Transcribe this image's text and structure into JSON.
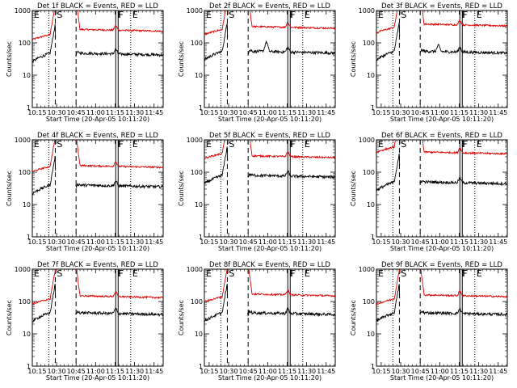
{
  "chart_data": {
    "type": "line",
    "common": {
      "xlabel": "Start Time (20-Apr-05 10:11:20)",
      "ylabel": "Counts/sec",
      "x_tick_labels": [
        "10:15",
        "10:30",
        "10:45",
        "11:00",
        "11:15",
        "11:30",
        "11:45"
      ],
      "x_tick_values_min": [
        15,
        30,
        45,
        60,
        75,
        90,
        105
      ],
      "xlim_min": [
        11.333,
        112
      ],
      "y_scale": "log",
      "ylim": [
        1,
        1000
      ],
      "y_tick_labels": [
        "1",
        "10",
        "100",
        "1000"
      ],
      "series_colors": {
        "events": "#000000",
        "lld": "#dd0000"
      },
      "markers": [
        {
          "label": "",
          "x_min": 24,
          "style": "dotted"
        },
        {
          "label": "S",
          "x_min": 29,
          "style": "dashed"
        },
        {
          "label": "",
          "x_min": 45,
          "style": "dashed"
        },
        {
          "label": "F",
          "x_min": 75.5,
          "style": "solid"
        },
        {
          "label": "E",
          "x_min": 87,
          "style": "dotted"
        }
      ],
      "marker_edge_labels": {
        "left": "E",
        "right": "F"
      }
    },
    "panels": [
      {
        "title": "Det 1f BLACK = Events, RED = LLD",
        "events_base": 48,
        "lld_base": 260,
        "events_bump": 0,
        "lld_bump": 0,
        "lld_ramp_start": 180
      },
      {
        "title": "Det 2f BLACK = Events, RED = LLD",
        "events_base": 55,
        "lld_base": 320,
        "events_bump": 130,
        "lld_bump": 0,
        "lld_ramp_start": 260
      },
      {
        "title": "Det 3f BLACK = Events, RED = LLD",
        "events_base": 55,
        "lld_base": 380,
        "events_bump": 70,
        "lld_bump": 0,
        "lld_ramp_start": 300
      },
      {
        "title": "Det 4f BLACK = Events, RED = LLD",
        "events_base": 40,
        "lld_base": 160,
        "events_bump": 0,
        "lld_bump": 0,
        "lld_ramp_start": 150
      },
      {
        "title": "Det 5f BLACK = Events, RED = LLD",
        "events_base": 80,
        "lld_base": 320,
        "events_bump": 0,
        "lld_bump": 0,
        "lld_ramp_start": 380
      },
      {
        "title": "Det 6f BLACK = Events, RED = LLD",
        "events_base": 50,
        "lld_base": 420,
        "events_bump": 0,
        "lld_bump": 0,
        "lld_ramp_start": 600
      },
      {
        "title": "Det 7f BLACK = Events, RED = LLD",
        "events_base": 45,
        "lld_base": 150,
        "events_bump": 0,
        "lld_bump": 0,
        "lld_ramp_start": 120
      },
      {
        "title": "Det 8f BLACK = Events, RED = LLD",
        "events_base": 45,
        "lld_base": 170,
        "events_bump": 0,
        "lld_bump": 0,
        "lld_ramp_start": 140
      },
      {
        "title": "Det 9f BLACK = Events, RED = LLD",
        "events_base": 45,
        "lld_base": 160,
        "events_bump": 0,
        "lld_bump": 0,
        "lld_ramp_start": 120
      }
    ]
  }
}
